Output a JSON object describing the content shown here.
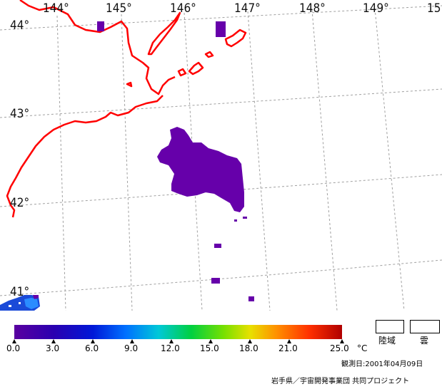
{
  "map": {
    "lon_labels": [
      "144°",
      "145°",
      "146°",
      "147°",
      "148°",
      "149°",
      "15"
    ],
    "lat_labels": [
      "44°",
      "43°",
      "42°",
      "41°"
    ]
  },
  "colorbar": {
    "ticks": [
      "0.0",
      "3.0",
      "6.0",
      "9.0",
      "12.0",
      "15.0",
      "18.0",
      "21.0",
      "25.0"
    ],
    "unit": "°C",
    "stops": [
      "#5a00a0",
      "#2a00b0",
      "#0018d8",
      "#0070ff",
      "#00c8d8",
      "#00d040",
      "#78e000",
      "#e8e000",
      "#ff9000",
      "#ff3000",
      "#b00000"
    ]
  },
  "legend": {
    "land_label": "陸域",
    "cloud_label": "雲"
  },
  "footer": {
    "date_text": "観測日:2001年04月09日",
    "credit_text": "岩手県／宇宙開発事業団 共同プロジェクト"
  },
  "colors": {
    "coast": "#ff0000",
    "sst_cold": "#6600aa",
    "grid": "#999999"
  }
}
